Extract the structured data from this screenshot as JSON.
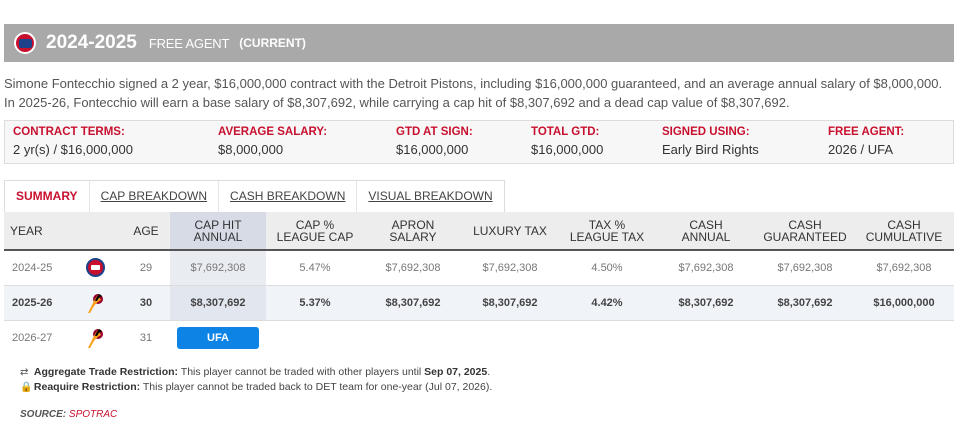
{
  "header": {
    "season": "2024-2025",
    "status": "FREE AGENT",
    "current": "(CURRENT)",
    "team_logo_icon": "pistons-logo-icon"
  },
  "description": "Simone Fontecchio signed a 2 year, $16,000,000 contract with the Detroit Pistons, including $16,000,000 guaranteed, and an average annual salary of $8,000,000. In 2025-26, Fontecchio will earn a base salary of $8,307,692, while carrying a cap hit of $8,307,692 and a dead cap value of $8,307,692.",
  "terms": [
    {
      "label": "CONTRACT TERMS:",
      "value": "2 yr(s) / $16,000,000"
    },
    {
      "label": "AVERAGE SALARY:",
      "value": "$8,000,000"
    },
    {
      "label": "GTD AT SIGN:",
      "value": "$16,000,000"
    },
    {
      "label": "TOTAL GTD:",
      "value": "$16,000,000"
    },
    {
      "label": "SIGNED USING:",
      "value": "Early Bird Rights"
    },
    {
      "label": "FREE AGENT:",
      "value": "2026 / UFA"
    }
  ],
  "tabs": [
    {
      "label": "SUMMARY",
      "active": true
    },
    {
      "label": "CAP BREAKDOWN",
      "active": false
    },
    {
      "label": "CASH BREAKDOWN",
      "active": false
    },
    {
      "label": "VISUAL BREAKDOWN",
      "active": false
    }
  ],
  "table": {
    "columns": [
      {
        "line1": "YEAR",
        "line2": ""
      },
      {
        "line1": "",
        "line2": ""
      },
      {
        "line1": "AGE",
        "line2": ""
      },
      {
        "line1": "CAP HIT",
        "line2": "ANNUAL"
      },
      {
        "line1": "CAP %",
        "line2": "LEAGUE CAP"
      },
      {
        "line1": "APRON SALARY",
        "line2": ""
      },
      {
        "line1": "LUXURY TAX",
        "line2": ""
      },
      {
        "line1": "TAX %",
        "line2": "LEAGUE TAX"
      },
      {
        "line1": "CASH",
        "line2": "ANNUAL"
      },
      {
        "line1": "CASH",
        "line2": "GUARANTEED"
      },
      {
        "line1": "CASH",
        "line2": "CUMULATIVE"
      }
    ],
    "rows": [
      {
        "year": "2024-25",
        "team_icon": "pistons-icon",
        "age": "29",
        "cap_hit": "$7,692,308",
        "cap_pct": "5.47%",
        "apron": "$7,692,308",
        "lux_tax": "$7,692,308",
        "tax_pct": "4.50%",
        "cash_annual": "$7,692,308",
        "cash_gtd": "$7,692,308",
        "cash_cum": "$7,692,308"
      },
      {
        "year": "2025-26",
        "team_icon": "heat-icon",
        "age": "30",
        "cap_hit": "$8,307,692",
        "cap_pct": "5.37%",
        "apron": "$8,307,692",
        "lux_tax": "$8,307,692",
        "tax_pct": "4.42%",
        "cash_annual": "$8,307,692",
        "cash_gtd": "$8,307,692",
        "cash_cum": "$16,000,000"
      },
      {
        "year": "2026-27",
        "team_icon": "heat-icon",
        "age": "31",
        "badge": "UFA"
      }
    ]
  },
  "restrictions": [
    {
      "icon": "trade-restriction-icon",
      "title": "Aggregate Trade Restriction:",
      "text": " This player cannot be traded with other players until ",
      "date": "Sep 07, 2025",
      "end": "."
    },
    {
      "icon": "lock-icon",
      "title": "Reaquire Restriction:",
      "text": " This player cannot be traded back to DET team for one-year (Jul 07, 2026).",
      "date": "",
      "end": ""
    }
  ],
  "source": {
    "label": "SOURCE:",
    "link": "SPOTRAC"
  },
  "colors": {
    "accent": "#c8102e",
    "header_bg": "#a9a9a9",
    "ufa_badge": "#0d83e6"
  }
}
